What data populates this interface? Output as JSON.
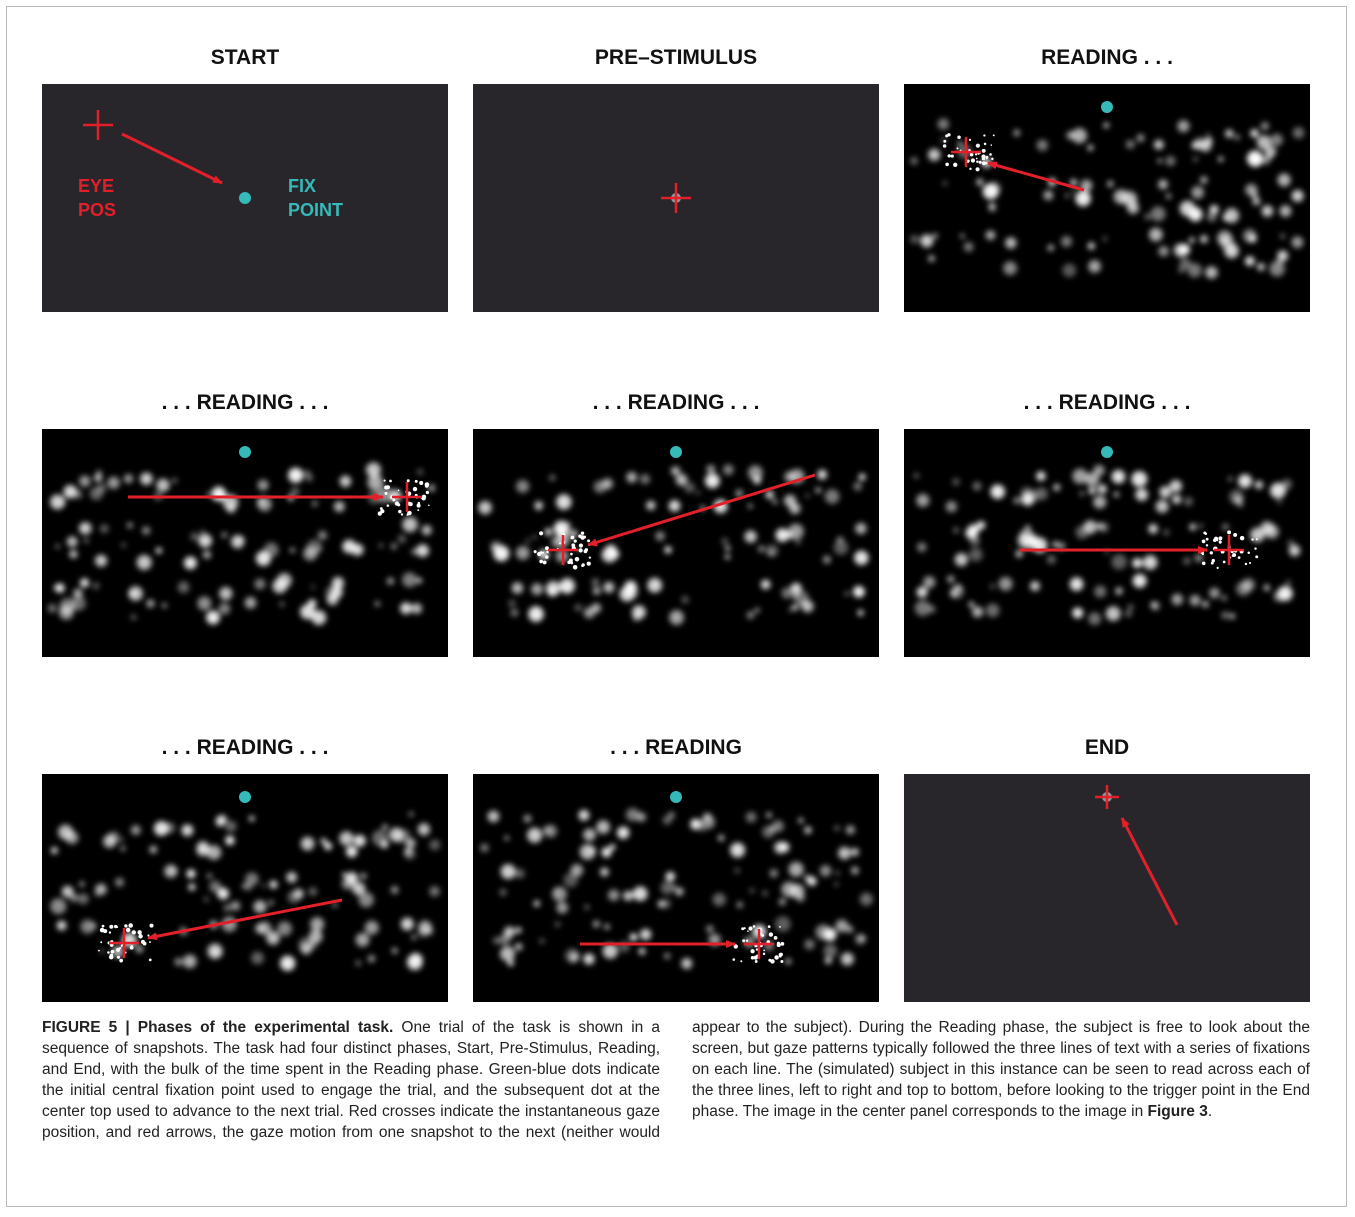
{
  "panels": [
    {
      "title": "START",
      "eye_label": [
        "EYE",
        "POS"
      ],
      "fix_label": [
        "FIX",
        "POINT"
      ]
    },
    {
      "title": "PRE–STIMULUS"
    },
    {
      "title": "READING . . ."
    },
    {
      "title": ". . . READING . . ."
    },
    {
      "title": ". . . READING . . ."
    },
    {
      "title": ". . . READING . . ."
    },
    {
      "title": ". . . READING . . ."
    },
    {
      "title": ". . . READING"
    },
    {
      "title": "END"
    }
  ],
  "caption": {
    "label": "FIGURE 5 | Phases of the experimental task.",
    "text": "One trial of the task is shown in a sequence of snapshots. The task had four distinct phases, Start, Pre-Stimulus, Reading, and End, with the bulk of the time spent in the Reading phase. Green-blue dots indicate the initial central fixation point used to engage the trial, and the subsequent dot at the center top used to advance to the next trial. Red crosses indicate the instantaneous gaze position, and red arrows, the gaze motion from one snapshot to the next (neither would appear to the subject). During the Reading phase, the subject is free to look about the screen, but gaze patterns typically followed the three lines of text with a series of fixations on each line. The (simulated) subject in this instance can be seen to read across each of the three lines, left to right and top to bottom, before looking to the trigger point in the End phase. The image in the center panel corresponds to the image in",
    "ref": "Figure 3",
    "end": "."
  }
}
